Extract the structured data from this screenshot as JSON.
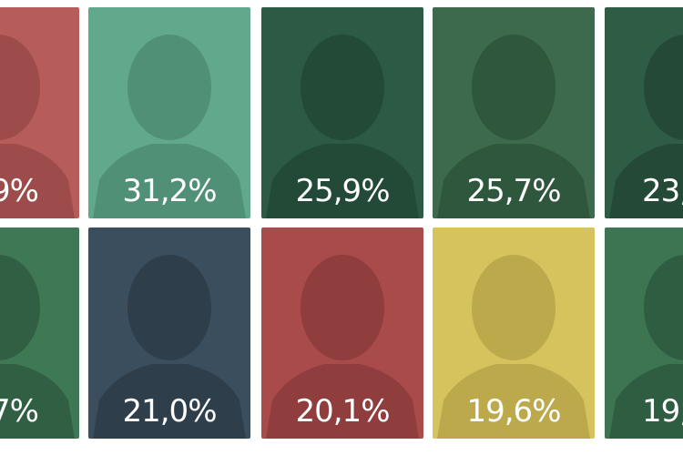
{
  "cards": [
    {
      "label": "9%"
    },
    {
      "label": "31,2%"
    },
    {
      "label": "25,9%"
    },
    {
      "label": "25,7%"
    },
    {
      "label": "23,"
    },
    {
      "label": "7%"
    },
    {
      "label": "21,0%"
    },
    {
      "label": "20,1%"
    },
    {
      "label": "19,6%"
    },
    {
      "label": "19,"
    }
  ]
}
